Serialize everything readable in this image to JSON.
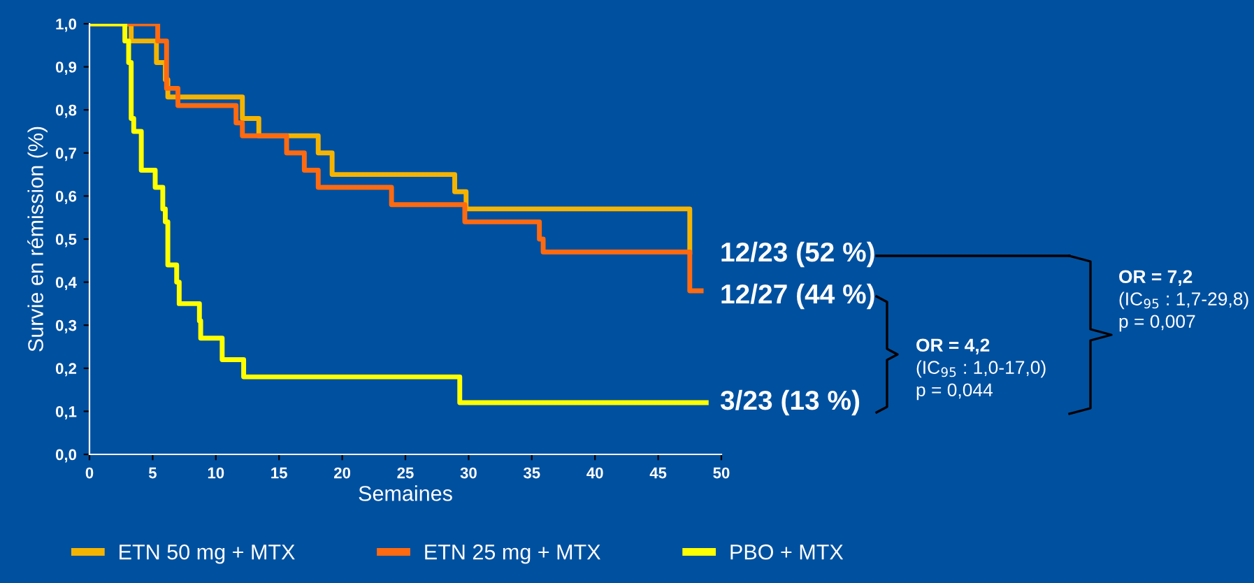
{
  "chart_data": {
    "type": "step",
    "ylabel": "Survie en rémission (%)",
    "xlabel": "Semaines",
    "xlim": [
      0,
      50
    ],
    "xticks": [
      0,
      5,
      10,
      15,
      20,
      25,
      30,
      35,
      40,
      45,
      50
    ],
    "ylim": [
      0,
      1.0
    ],
    "yticks": [
      {
        "value": 0,
        "label": "0,0"
      },
      {
        "value": 0.1,
        "label": "0,1"
      },
      {
        "value": 0.2,
        "label": "0,2"
      },
      {
        "value": 0.3,
        "label": "0,3"
      },
      {
        "value": 0.4,
        "label": "0,4"
      },
      {
        "value": 0.5,
        "label": "0,5"
      },
      {
        "value": 0.6,
        "label": "0,6"
      },
      {
        "value": 0.7,
        "label": "0,7"
      },
      {
        "value": 0.8,
        "label": "0,8"
      },
      {
        "value": 0.9,
        "label": "0,9"
      },
      {
        "value": 1.0,
        "label": "1,0"
      }
    ],
    "grid": false,
    "legend": "bottom",
    "marker": "none",
    "line_style": "solid",
    "series": [
      {
        "name": "ETN 50 mg + MTX",
        "color": "#f5b400",
        "x": [
          0,
          3.3,
          5.3,
          6.0,
          6.2,
          12.1,
          13.4,
          18.1,
          19.2,
          28.9,
          29.8,
          47.5
        ],
        "values": [
          1.0,
          0.96,
          0.91,
          0.87,
          0.83,
          0.78,
          0.74,
          0.7,
          0.65,
          0.61,
          0.57,
          0.47
        ]
      },
      {
        "name": "ETN 25 mg + MTX",
        "color": "#ff6a10",
        "x": [
          0,
          5.4,
          6.1,
          7.0,
          11.6,
          12.1,
          15.6,
          17.0,
          18.1,
          23.9,
          29.7,
          35.6,
          35.9,
          47.5,
          48.4
        ],
        "values": [
          1.0,
          0.96,
          0.85,
          0.81,
          0.77,
          0.74,
          0.7,
          0.66,
          0.62,
          0.58,
          0.54,
          0.5,
          0.47,
          0.38,
          0.38
        ]
      },
      {
        "name": "PBO + MTX",
        "color": "#ffff00",
        "x": [
          0,
          2.8,
          3.1,
          3.3,
          3.5,
          4.1,
          5.2,
          5.8,
          6.0,
          6.2,
          6.9,
          7.1,
          8.7,
          8.8,
          10.5,
          12.2,
          29.3,
          48.8
        ],
        "values": [
          1.0,
          0.96,
          0.91,
          0.78,
          0.75,
          0.66,
          0.62,
          0.57,
          0.54,
          0.44,
          0.4,
          0.35,
          0.31,
          0.27,
          0.22,
          0.18,
          0.12,
          0.12
        ]
      }
    ],
    "annotations": [
      "12/23 (52 %)",
      "12/27 (44 %)",
      "3/23 (13 %)",
      "OR = 4,2",
      "(IC$_{95}$ : 1,0-17,0)",
      "p = 0,044",
      "OR = 7,2",
      "(IC$_{95}$ : 1,7-29,8)",
      "p = 0,007"
    ]
  }
}
